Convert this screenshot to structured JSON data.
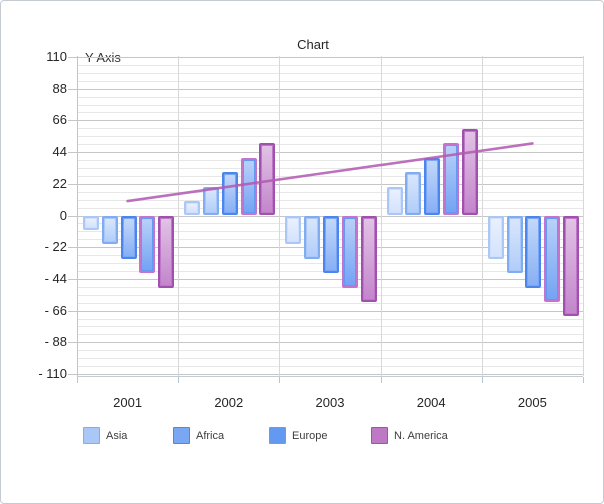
{
  "window": {
    "background": "#ffffff",
    "border_color": "#c6cbd1"
  },
  "chart_data": {
    "type": "bar",
    "title": "Chart",
    "y_axis_label": "Y Axis",
    "categories": [
      "2001",
      "2002",
      "2003",
      "2004",
      "2005"
    ],
    "ylim": [
      -110,
      110
    ],
    "y_major_step": 22,
    "y_minor_step": 5.5,
    "y_tick_labels": [
      "110",
      "88",
      "66",
      "44",
      "22",
      "0",
      "- 22",
      "- 44",
      "- 66",
      "- 88",
      "- 110"
    ],
    "grid": "major-and-minor-horizontal, vertical-at-category-boundaries",
    "legend_position": "bottom",
    "legend_visible_entries": [
      "Asia",
      "Africa",
      "Europe",
      "N. America"
    ],
    "series": [
      {
        "label": "",
        "in_legend": false,
        "fill": "#cfdffc",
        "border": "#abc7f8",
        "values": [
          -10,
          10,
          -20,
          20,
          -30
        ]
      },
      {
        "label": "Asia",
        "in_legend": true,
        "fill": "#a9c8f8",
        "border": "#82acf2",
        "values": [
          -20,
          20,
          -30,
          30,
          -40
        ]
      },
      {
        "label": "Africa",
        "in_legend": true,
        "fill": "#7aa7f4",
        "border": "#4d85ee",
        "values": [
          -30,
          30,
          -40,
          40,
          -50
        ]
      },
      {
        "label": "Europe",
        "in_legend": true,
        "fill": "#6499f2",
        "border": "#c573cc",
        "values": [
          -40,
          40,
          -50,
          50,
          -60
        ]
      },
      {
        "label": "N. America",
        "in_legend": true,
        "fill": "#bd78c6",
        "border": "#a050ad",
        "values": [
          -50,
          50,
          -60,
          60,
          -70
        ]
      }
    ],
    "trend_line": {
      "type": "line",
      "color": "#b158b1",
      "values": [
        10,
        20,
        30,
        40,
        50
      ]
    }
  }
}
